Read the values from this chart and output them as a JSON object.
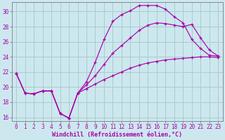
{
  "xlabel": "Windchill (Refroidissement éolien,°C)",
  "bg_color": "#cce8ee",
  "line_color": "#aa00aa",
  "grid_color": "#aacccc",
  "spine_color": "#888899",
  "xlim": [
    -0.5,
    23.5
  ],
  "ylim": [
    15.5,
    31.2
  ],
  "xticks": [
    0,
    1,
    2,
    3,
    4,
    5,
    6,
    7,
    8,
    9,
    10,
    11,
    12,
    13,
    14,
    15,
    16,
    17,
    18,
    19,
    20,
    21,
    22,
    23
  ],
  "yticks": [
    16,
    18,
    20,
    22,
    24,
    26,
    28,
    30
  ],
  "curve1_x": [
    0,
    1,
    2,
    3,
    4,
    5,
    6,
    7,
    8,
    9,
    10,
    11,
    12,
    13,
    14,
    15,
    16,
    17,
    18,
    19,
    20,
    21,
    22,
    23
  ],
  "curve1_y": [
    21.8,
    19.2,
    19.1,
    19.5,
    19.5,
    16.5,
    15.9,
    19.2,
    20.7,
    23.3,
    26.3,
    28.7,
    29.6,
    30.1,
    30.8,
    30.8,
    30.8,
    30.3,
    29.3,
    28.5,
    26.3,
    25.1,
    24.2,
    24.1
  ],
  "curve2_x": [
    0,
    1,
    2,
    3,
    4,
    5,
    6,
    7,
    8,
    9,
    10,
    11,
    12,
    13,
    14,
    15,
    16,
    17,
    18,
    19,
    20,
    21,
    22,
    23
  ],
  "curve2_y": [
    21.8,
    19.2,
    19.1,
    19.5,
    19.5,
    16.5,
    15.9,
    19.2,
    20.3,
    21.5,
    23.0,
    24.5,
    25.5,
    26.5,
    27.5,
    28.2,
    28.5,
    28.4,
    28.2,
    28.0,
    28.3,
    26.5,
    24.9,
    24.1
  ],
  "curve3_x": [
    0,
    1,
    2,
    3,
    4,
    5,
    6,
    7,
    8,
    9,
    10,
    11,
    12,
    13,
    14,
    15,
    16,
    17,
    18,
    19,
    20,
    21,
    22,
    23
  ],
  "curve3_y": [
    21.8,
    19.2,
    19.1,
    19.5,
    19.5,
    16.5,
    15.9,
    19.2,
    19.8,
    20.4,
    21.0,
    21.5,
    22.0,
    22.5,
    22.9,
    23.2,
    23.4,
    23.6,
    23.7,
    23.8,
    23.9,
    24.0,
    24.0,
    23.9
  ]
}
